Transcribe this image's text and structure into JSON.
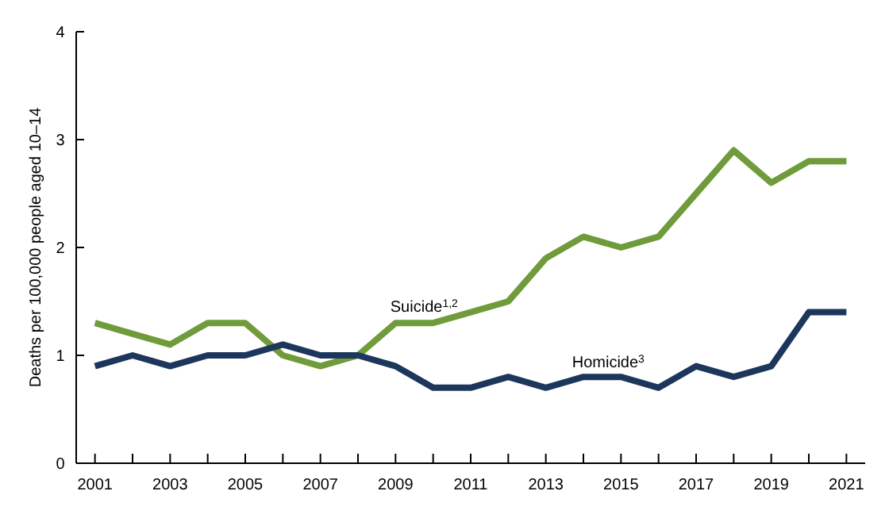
{
  "chart_data": {
    "type": "line",
    "ylabel": "Deaths per 100,000 people aged 10–14",
    "x": [
      2001,
      2002,
      2003,
      2004,
      2005,
      2006,
      2007,
      2008,
      2009,
      2010,
      2011,
      2012,
      2013,
      2014,
      2015,
      2016,
      2017,
      2018,
      2019,
      2020,
      2021
    ],
    "series": [
      {
        "name": "Suicide$^{1,2}$",
        "color": "#6f9b3b",
        "values": [
          1.3,
          1.2,
          1.1,
          1.3,
          1.3,
          1.0,
          0.9,
          1.0,
          1.3,
          1.3,
          1.4,
          1.5,
          1.9,
          2.1,
          2.0,
          2.1,
          2.5,
          2.9,
          2.6,
          2.8,
          2.8
        ]
      },
      {
        "name": "Homicide$^{3}$",
        "color": "#1c365c",
        "values": [
          0.9,
          1.0,
          0.9,
          1.0,
          1.0,
          1.1,
          1.0,
          1.0,
          0.9,
          0.7,
          0.7,
          0.8,
          0.7,
          0.8,
          0.8,
          0.7,
          0.9,
          0.8,
          0.9,
          1.4,
          1.4
        ]
      }
    ],
    "xlim": [
      2000.5,
      2021.5
    ],
    "xticks": [
      2001,
      {
        "value": 2002,
        "label": null
      },
      2003,
      {
        "value": 2004,
        "label": null
      },
      2005,
      {
        "value": 2006,
        "label": null
      },
      2007,
      {
        "value": 2008,
        "label": null
      },
      2009,
      {
        "value": 2010,
        "label": null
      },
      2011,
      {
        "value": 2012,
        "label": null
      },
      2013,
      {
        "value": 2014,
        "label": null
      },
      2015,
      {
        "value": 2016,
        "label": null
      },
      2017,
      {
        "value": 2018,
        "label": null
      },
      2019,
      {
        "value": 2020,
        "label": null
      },
      2021
    ],
    "ylim": [
      0,
      4
    ],
    "yticks": [
      0,
      1,
      2,
      3,
      4
    ],
    "marker": "none",
    "line_style": "solid"
  }
}
